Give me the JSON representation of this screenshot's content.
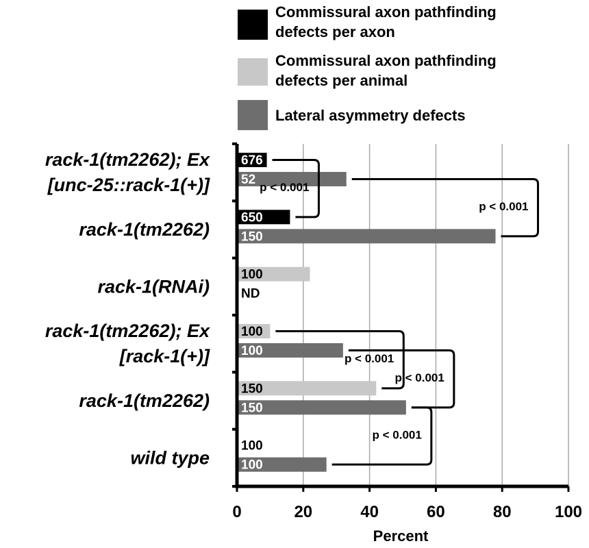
{
  "chart_data": {
    "type": "bar",
    "orientation": "horizontal",
    "xlabel": "Percent",
    "xlim": [
      0,
      100
    ],
    "xticks": [
      0,
      20,
      40,
      60,
      80,
      100
    ],
    "grid": "vertical",
    "legend_placement": "top",
    "series": [
      {
        "name": "Commissural axon pathfinding defects per axon",
        "lines": [
          "Commissural axon pathfinding",
          "defects per axon"
        ],
        "color": "#000000"
      },
      {
        "name": "Commissural axon pathfinding defects per animal",
        "lines": [
          "Commissural axon pathfinding",
          "defects per animal"
        ],
        "color": "#c8c8c8"
      },
      {
        "name": "Lateral asymmetry defects",
        "lines": [
          "Lateral asymmetry defects"
        ],
        "color": "#6e6e6e"
      }
    ],
    "categories": [
      {
        "label_lines": [
          "rack-1(tm2262); Ex",
          "[unc-25::rack-1(+)]"
        ],
        "bars": [
          {
            "series": 0,
            "value": 9,
            "n": "676"
          },
          {
            "series": 2,
            "value": 33,
            "n": "52"
          }
        ]
      },
      {
        "label_lines": [
          "rack-1(tm2262)"
        ],
        "bars": [
          {
            "series": 0,
            "value": 16,
            "n": "650"
          },
          {
            "series": 2,
            "value": 78,
            "n": "150"
          }
        ]
      },
      {
        "label_lines": [
          "rack-1(RNAi)"
        ],
        "bars": [
          {
            "series": 1,
            "value": 22,
            "n": "100"
          },
          {
            "series": 2,
            "value": null,
            "n": "ND"
          }
        ]
      },
      {
        "label_lines": [
          "rack-1(tm2262); Ex",
          "[rack-1(+)]"
        ],
        "bars": [
          {
            "series": 1,
            "value": 10,
            "n": "100"
          },
          {
            "series": 2,
            "value": 32,
            "n": "100"
          }
        ]
      },
      {
        "label_lines": [
          "rack-1(tm2262)"
        ],
        "bars": [
          {
            "series": 1,
            "value": 42,
            "n": "150"
          },
          {
            "series": 2,
            "value": 51,
            "n": "150"
          }
        ]
      },
      {
        "label_lines": [
          "wild type"
        ],
        "bars": [
          {
            "series": 1,
            "value": 0,
            "n": "100"
          },
          {
            "series": 2,
            "value": 27,
            "n": "100"
          }
        ]
      }
    ],
    "annotations": [
      {
        "text": "p < 0.001",
        "from": [
          0,
          0
        ],
        "to": [
          1,
          0
        ]
      },
      {
        "text": "p < 0.001",
        "from": [
          0,
          1
        ],
        "to": [
          1,
          1
        ]
      },
      {
        "text": "p < 0.001",
        "from": [
          3,
          0
        ],
        "to": [
          4,
          0
        ]
      },
      {
        "text": "p < 0.001",
        "from": [
          3,
          1
        ],
        "to": [
          4,
          1
        ]
      },
      {
        "text": "p < 0.001",
        "from": [
          4,
          1
        ],
        "to": [
          5,
          1
        ]
      }
    ]
  }
}
